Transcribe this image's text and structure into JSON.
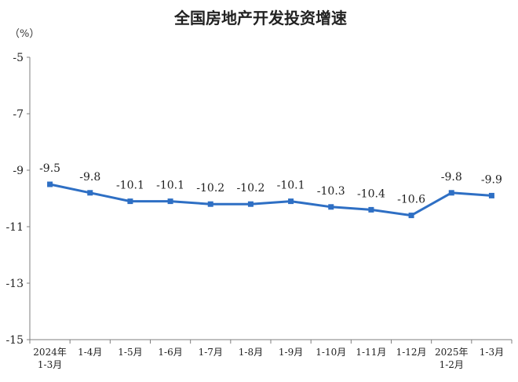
{
  "chart_data": {
    "type": "line",
    "title": "全国房地产开发投资增速",
    "unit_label": "（%）",
    "categories": [
      [
        "2024年",
        "1-3月"
      ],
      [
        "1-4月"
      ],
      [
        "1-5月"
      ],
      [
        "1-6月"
      ],
      [
        "1-7月"
      ],
      [
        "1-8月"
      ],
      [
        "1-9月"
      ],
      [
        "1-10月"
      ],
      [
        "1-11月"
      ],
      [
        "1-12月"
      ],
      [
        "2025年",
        "1-2月"
      ],
      [
        "1-3月"
      ]
    ],
    "series": [
      {
        "values": [
          -9.5,
          -9.8,
          -10.1,
          -10.1,
          -10.2,
          -10.2,
          -10.1,
          -10.3,
          -10.4,
          -10.6,
          -9.8,
          -9.9
        ],
        "color": "#2e6fc4"
      }
    ],
    "data_labels": [
      "-9.5",
      "-9.8",
      "-10.1",
      "-10.1",
      "-10.2",
      "-10.2",
      "-10.1",
      "-10.3",
      "-10.4",
      "-10.6",
      "-9.8",
      "-9.9"
    ],
    "yticks": [
      -5,
      -7,
      -9,
      -11,
      -13,
      -15
    ],
    "ylim": [
      -15,
      -5
    ],
    "grid": false,
    "legend": false,
    "axis_color": "#7f7f7f"
  }
}
